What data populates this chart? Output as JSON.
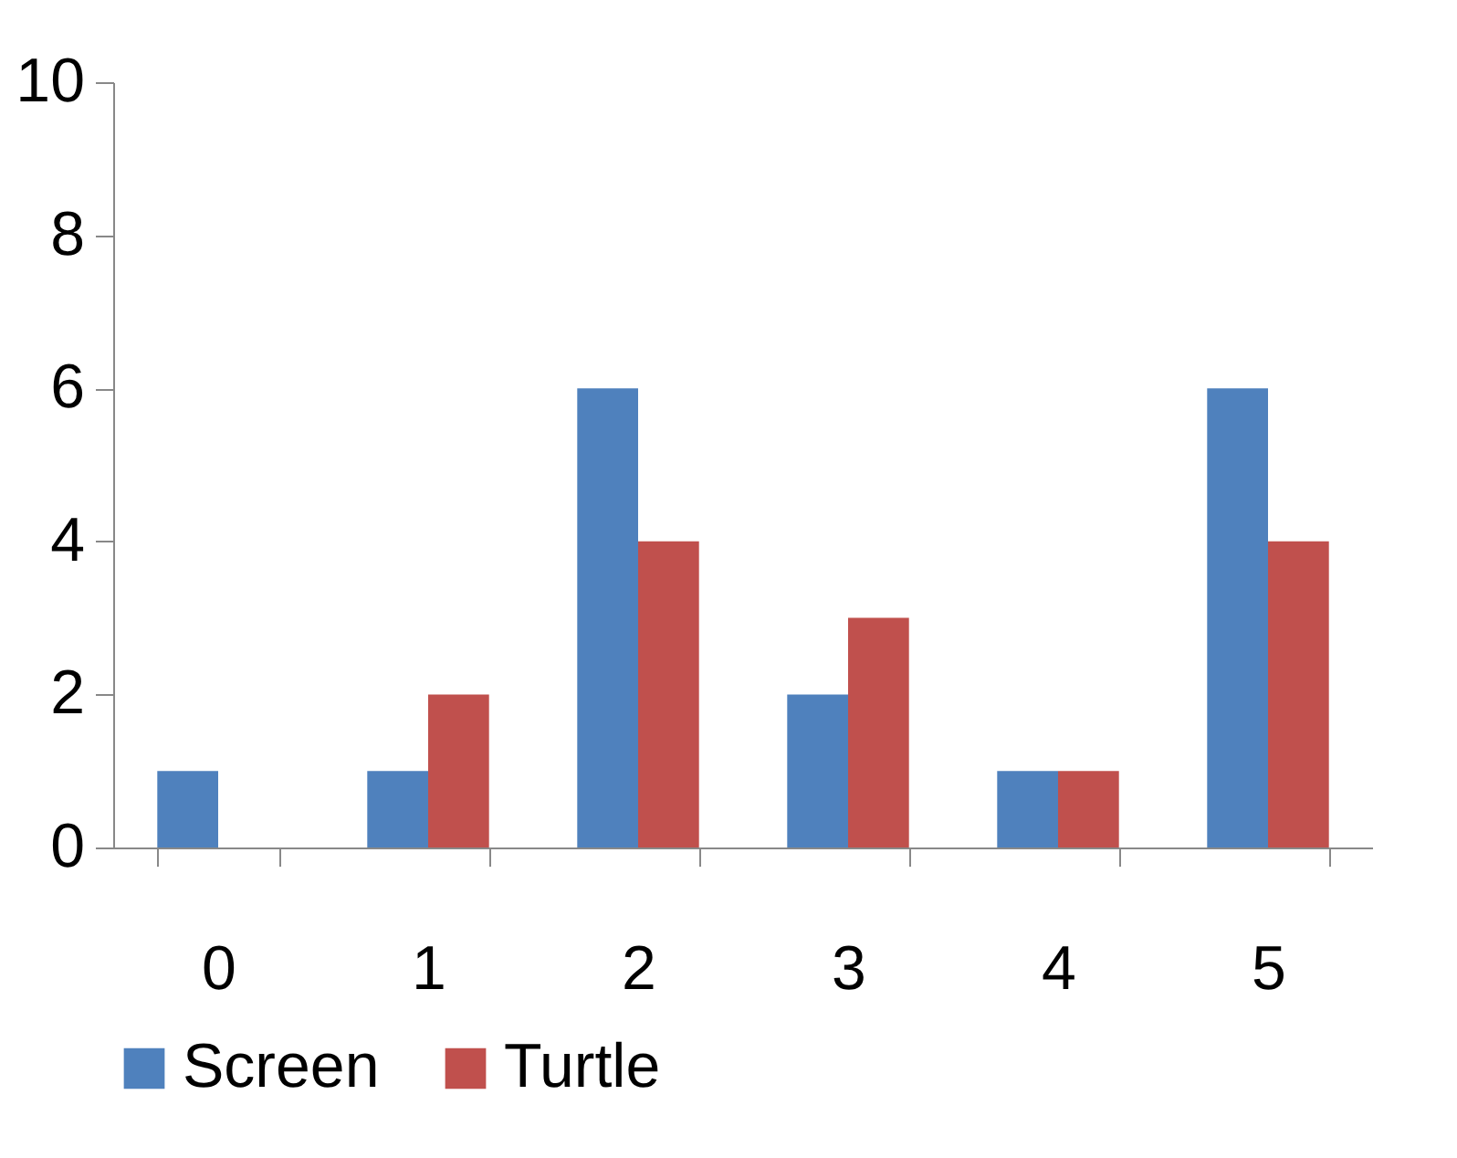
{
  "chart_data": {
    "type": "bar",
    "categories": [
      "0",
      "1",
      "2",
      "3",
      "4",
      "5"
    ],
    "series": [
      {
        "name": "Screen",
        "color": "#4f81bd",
        "values": [
          1,
          1,
          6,
          2,
          1,
          6
        ]
      },
      {
        "name": "Turtle",
        "color": "#c0504d",
        "values": [
          0,
          2,
          4,
          3,
          1,
          4
        ]
      }
    ],
    "ylim": [
      0,
      10
    ],
    "yticks": [
      0,
      2,
      4,
      6,
      8,
      10
    ],
    "grid": false,
    "legend": "bottom"
  }
}
